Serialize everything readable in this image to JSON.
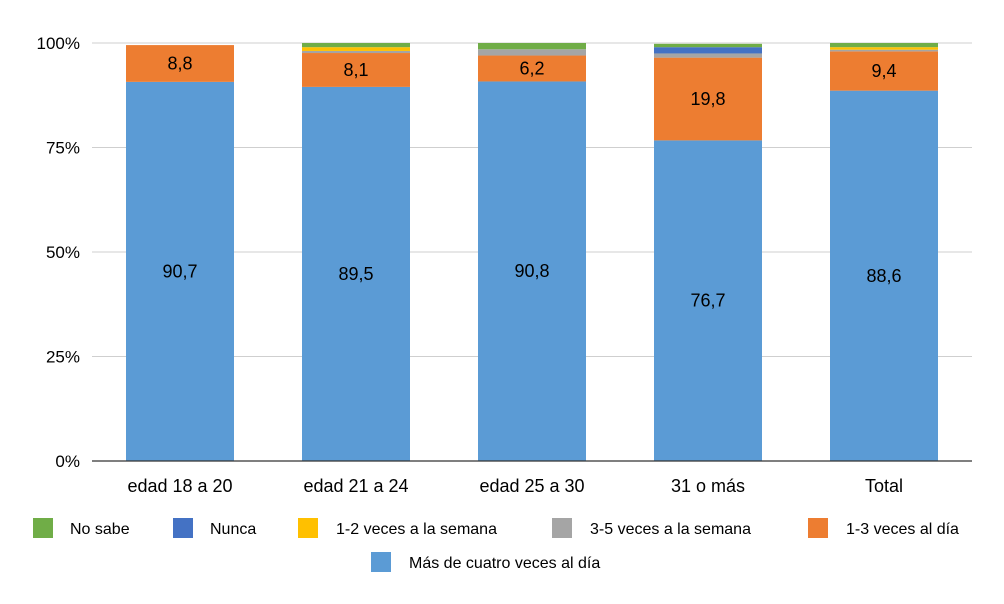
{
  "chart_data": {
    "type": "bar",
    "stacked": true,
    "percent_stacked": true,
    "title": "",
    "xlabel": "",
    "ylabel": "",
    "ylim": [
      0,
      100
    ],
    "y_ticks": [
      0,
      25,
      50,
      75,
      100
    ],
    "y_tick_labels": [
      "0%",
      "25%",
      "50%",
      "75%",
      "100%"
    ],
    "grid": true,
    "legend_position": "bottom",
    "categories": [
      "edad 18 a 20",
      "edad 21 a 24",
      "edad 25 a 30",
      "31 o más",
      "Total"
    ],
    "series": [
      {
        "name": "Más de cuatro veces al día",
        "color": "#5B9BD5",
        "values": [
          90.7,
          89.5,
          90.8,
          76.7,
          88.6
        ],
        "labels": [
          "90,7",
          "89,5",
          "90,8",
          "76,7",
          "88,6"
        ]
      },
      {
        "name": "1-3 veces al día",
        "color": "#ED7D31",
        "values": [
          8.8,
          8.1,
          6.2,
          19.8,
          9.4
        ],
        "labels": [
          "8,8",
          "8,1",
          "6,2",
          "19,8",
          "9,4"
        ]
      },
      {
        "name": "3-5 veces a la semana",
        "color": "#A5A5A5",
        "values": [
          0,
          0.5,
          1.5,
          1.0,
          0.4
        ],
        "labels": []
      },
      {
        "name": "1-2 veces a la semana",
        "color": "#FFC000",
        "values": [
          0,
          0.9,
          0,
          0,
          0.6
        ],
        "labels": []
      },
      {
        "name": "Nunca",
        "color": "#4472C4",
        "values": [
          0,
          0,
          0,
          1.5,
          0
        ],
        "labels": []
      },
      {
        "name": "No sabe",
        "color": "#70AD47",
        "values": [
          0,
          1.0,
          1.5,
          0.8,
          1.0
        ],
        "labels": []
      }
    ],
    "legend_order": [
      "No sabe",
      "Nunca",
      "1-2 veces a la semana",
      "3-5 veces a la semana",
      "1-3 veces al día",
      "Más de cuatro veces al día"
    ]
  }
}
